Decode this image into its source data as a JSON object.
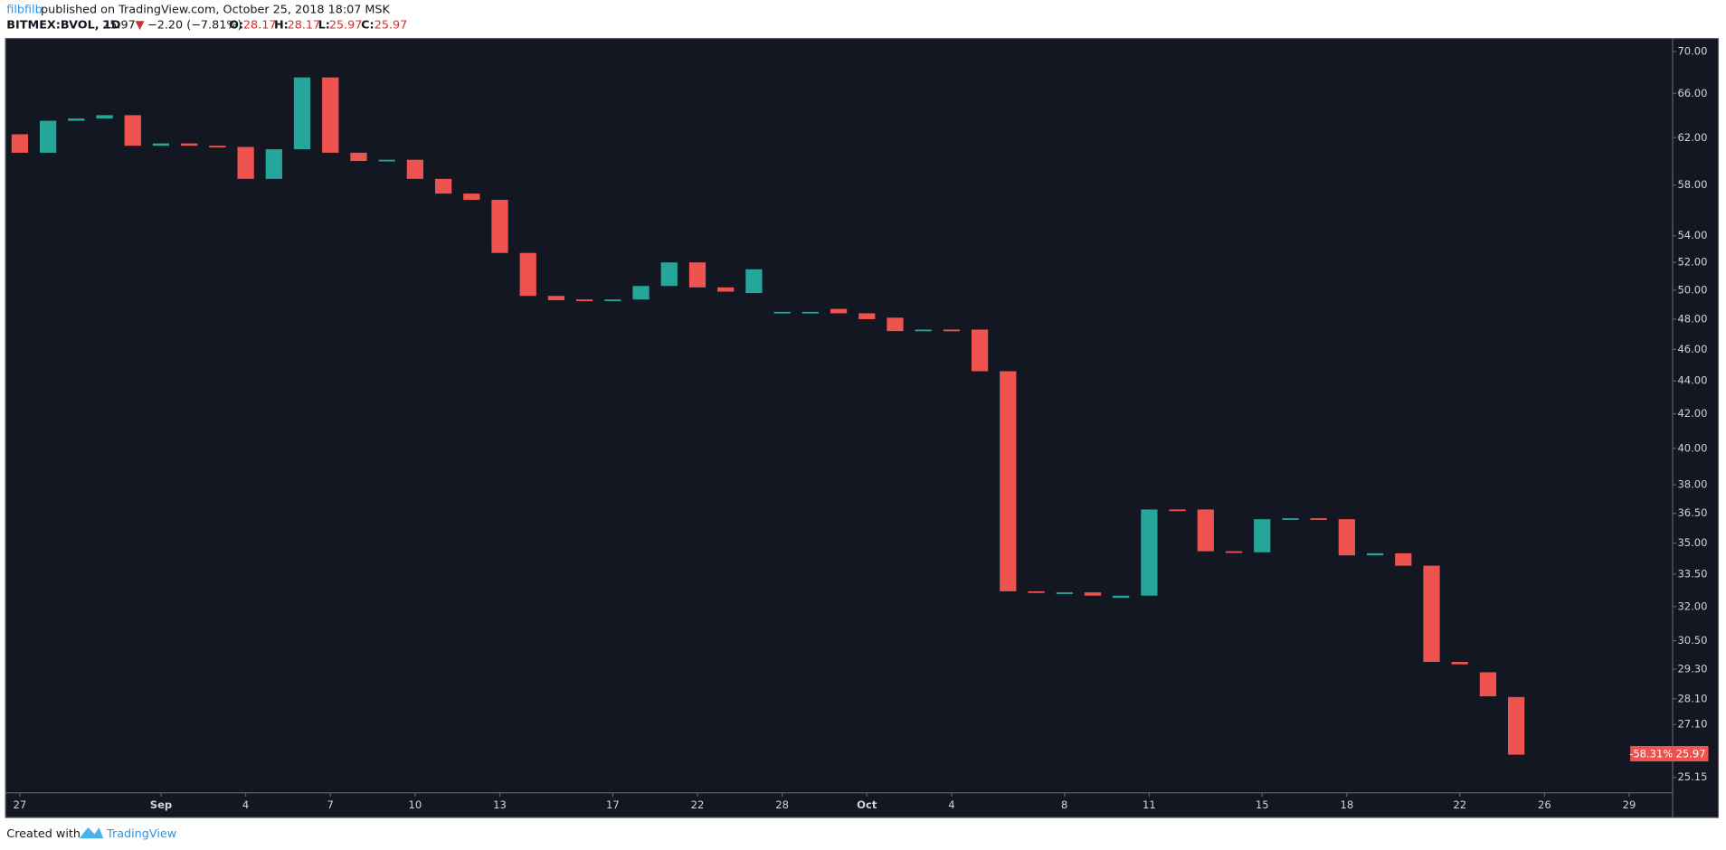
{
  "header": {
    "author": "filbfilb",
    "published": "published on TradingView.com, October 25, 2018 18:07 MSK"
  },
  "legend": {
    "symbol": "BITMEX:BVOL, 1D",
    "last": "25.97",
    "arrow": "▼",
    "change": "−2.20 (−7.81%)",
    "open_label": "O:",
    "open": "28.17",
    "high_label": "H:",
    "high": "28.17",
    "low_label": "L:",
    "low": "25.97",
    "close_label": "C:",
    "close": "25.97"
  },
  "price_tag": {
    "change": "-58.31%",
    "price": "25.97"
  },
  "footer": {
    "created_with": "Created with",
    "brand": "TradingView"
  },
  "chart_data": {
    "type": "candlestick",
    "log_scale": true,
    "grid": false,
    "up_color": "#26a69a",
    "down_color": "#ef5350",
    "categories": [
      "27",
      null,
      null,
      null,
      null,
      "Sep",
      null,
      null,
      "4",
      null,
      null,
      "7",
      null,
      null,
      "10",
      null,
      null,
      "13",
      null,
      null,
      null,
      "17",
      null,
      null,
      "22",
      null,
      null,
      "28",
      null,
      null,
      "Oct",
      null,
      null,
      "4",
      null,
      null,
      null,
      "8",
      null,
      null,
      "11",
      null,
      null,
      null,
      "15",
      null,
      null,
      "18",
      null,
      null,
      null,
      "22",
      null,
      null,
      "26",
      null,
      null,
      "29"
    ],
    "open": [
      62.3,
      60.7,
      63.5,
      63.7,
      64.0,
      61.3,
      61.5,
      61.3,
      61.2,
      58.5,
      61.0,
      67.5,
      60.7,
      60.0,
      60.1,
      58.5,
      57.3,
      56.8,
      52.7,
      49.6,
      49.35,
      49.3,
      49.35,
      50.3,
      52.0,
      50.2,
      49.8,
      48.4,
      48.45,
      48.7,
      48.4,
      48.1,
      47.2,
      47.3,
      47.3,
      44.6,
      32.7,
      32.6,
      32.65,
      32.4,
      32.5,
      36.7,
      36.7,
      34.6,
      34.55,
      36.2,
      36.25,
      36.2,
      34.4,
      34.5,
      33.9,
      29.6,
      29.17,
      28.17,
      null,
      null,
      null,
      null
    ],
    "close": [
      60.7,
      63.5,
      63.7,
      64.0,
      61.3,
      61.5,
      61.3,
      61.2,
      58.5,
      61.0,
      67.5,
      60.7,
      60.0,
      60.1,
      58.5,
      57.3,
      56.8,
      52.7,
      49.6,
      49.3,
      49.3,
      49.35,
      50.3,
      52.0,
      50.2,
      49.9,
      51.5,
      48.5,
      48.5,
      48.4,
      48.0,
      47.2,
      47.3,
      47.2,
      44.6,
      32.7,
      32.65,
      32.65,
      32.5,
      32.5,
      36.7,
      36.65,
      34.6,
      34.55,
      36.2,
      36.25,
      36.2,
      34.4,
      34.5,
      33.9,
      29.6,
      29.5,
      28.2,
      25.97,
      null,
      null,
      null,
      null
    ],
    "ylim": [
      24.63,
      71.2
    ],
    "yticks": [
      {
        "value": 70,
        "label": "70.00"
      },
      {
        "value": 66,
        "label": "66.00"
      },
      {
        "value": 62,
        "label": "62.00"
      },
      {
        "value": 58,
        "label": "58.00"
      },
      {
        "value": 54,
        "label": "54.00"
      },
      {
        "value": 52,
        "label": "52.00"
      },
      {
        "value": 50,
        "label": "50.00"
      },
      {
        "value": 48,
        "label": "48.00"
      },
      {
        "value": 46,
        "label": "46.00"
      },
      {
        "value": 44,
        "label": "44.00"
      },
      {
        "value": 42,
        "label": "42.00"
      },
      {
        "value": 40,
        "label": "40.00"
      },
      {
        "value": 38,
        "label": "38.00"
      },
      {
        "value": 36.5,
        "label": "36.50"
      },
      {
        "value": 35,
        "label": "35.00"
      },
      {
        "value": 33.5,
        "label": "33.50"
      },
      {
        "value": 32,
        "label": "32.00"
      },
      {
        "value": 30.5,
        "label": "30.50"
      },
      {
        "value": 29.3,
        "label": "29.30"
      },
      {
        "value": 28.1,
        "label": "28.10"
      },
      {
        "value": 27.1,
        "label": "27.10"
      },
      {
        "value": 25.15,
        "label": "25.15"
      }
    ]
  }
}
